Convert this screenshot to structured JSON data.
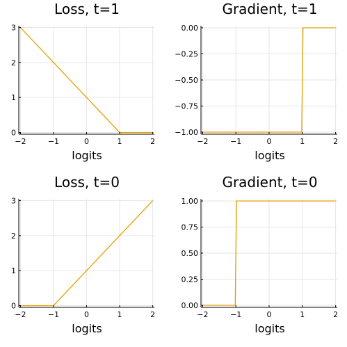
{
  "chart_data": [
    {
      "type": "line",
      "title": "Loss, t=1",
      "xlabel": "logits",
      "ylabel": "",
      "xlim": [
        -2.05,
        2.05
      ],
      "ylim": [
        -0.05,
        3.05
      ],
      "xticks": [
        -2,
        -1,
        0,
        1,
        2
      ],
      "xtick_labels": [
        "−2",
        "−1",
        "0",
        "1",
        "2"
      ],
      "yticks": [
        0,
        1,
        2,
        3
      ],
      "ytick_labels": [
        "0",
        "1",
        "2",
        "3"
      ],
      "grid": true,
      "series": [
        {
          "color": "#e69f00",
          "x": [
            -2,
            1,
            2
          ],
          "y": [
            3,
            0,
            0
          ]
        }
      ]
    },
    {
      "type": "line",
      "title": "Gradient, t=1",
      "xlabel": "logits",
      "ylabel": "",
      "xlim": [
        -2.05,
        2.05
      ],
      "ylim": [
        -1.02,
        0.02
      ],
      "xticks": [
        -2,
        -1,
        0,
        1,
        2
      ],
      "xtick_labels": [
        "−2",
        "−1",
        "0",
        "1",
        "2"
      ],
      "yticks": [
        -1.0,
        -0.75,
        -0.5,
        -0.25,
        0.0
      ],
      "ytick_labels": [
        "−1.00",
        "−0.75",
        "−0.50",
        "−0.25",
        "0.00"
      ],
      "grid": true,
      "series": [
        {
          "color": "#e69f00",
          "x": [
            -2,
            0.98,
            1.02,
            2
          ],
          "y": [
            -1,
            -1,
            0,
            0
          ]
        }
      ]
    },
    {
      "type": "line",
      "title": "Loss, t=0",
      "xlabel": "logits",
      "ylabel": "",
      "xlim": [
        -2.05,
        2.05
      ],
      "ylim": [
        -0.05,
        3.05
      ],
      "xticks": [
        -2,
        -1,
        0,
        1,
        2
      ],
      "xtick_labels": [
        "−2",
        "−1",
        "0",
        "1",
        "2"
      ],
      "yticks": [
        0,
        1,
        2,
        3
      ],
      "ytick_labels": [
        "0",
        "1",
        "2",
        "3"
      ],
      "grid": true,
      "series": [
        {
          "color": "#e69f00",
          "x": [
            -2,
            -1,
            2
          ],
          "y": [
            0,
            0,
            3
          ]
        }
      ]
    },
    {
      "type": "line",
      "title": "Gradient, t=0",
      "xlabel": "logits",
      "ylabel": "",
      "xlim": [
        -2.05,
        2.05
      ],
      "ylim": [
        -0.02,
        1.02
      ],
      "xticks": [
        -2,
        -1,
        0,
        1,
        2
      ],
      "xtick_labels": [
        "−2",
        "−1",
        "0",
        "1",
        "2"
      ],
      "yticks": [
        0.0,
        0.25,
        0.5,
        0.75,
        1.0
      ],
      "ytick_labels": [
        "0.00",
        "0.25",
        "0.50",
        "0.75",
        "1.00"
      ],
      "grid": true,
      "series": [
        {
          "color": "#e69f00",
          "x": [
            -2,
            -1.02,
            -0.98,
            2
          ],
          "y": [
            0,
            0,
            1,
            1
          ]
        }
      ]
    }
  ]
}
